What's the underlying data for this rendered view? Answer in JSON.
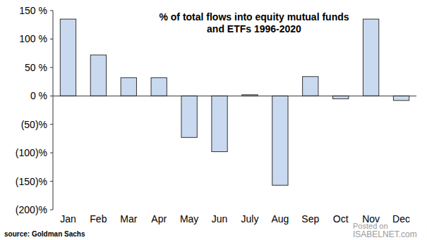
{
  "chart_data": {
    "type": "bar",
    "title": "% of total flows into equity mutual funds and ETFs 1996-2020",
    "source": "source: Goldman Sachs",
    "annotations": [
      "Posted on",
      "ISABELNET.com"
    ],
    "categories": [
      "Jan",
      "Feb",
      "Mar",
      "Apr",
      "May",
      "Jun",
      "July",
      "Aug",
      "Sep",
      "Oct",
      "Nov",
      "Dec"
    ],
    "values": [
      135,
      72,
      32,
      32,
      -73,
      -98,
      2,
      -157,
      34,
      -5,
      135,
      -8
    ],
    "color": "#c9d9ef",
    "ylim": [
      -200,
      150
    ],
    "yticks": [
      {
        "value": 150,
        "label": "150 %"
      },
      {
        "value": 100,
        "label": "100 %"
      },
      {
        "value": 50,
        "label": "50 %"
      },
      {
        "value": 0,
        "label": "0 %"
      },
      {
        "value": -50,
        "label": "(50)%"
      },
      {
        "value": -100,
        "label": "(100)%"
      },
      {
        "value": -150,
        "label": "(150)%"
      },
      {
        "value": -200,
        "label": "(200)%"
      }
    ],
    "grid": false
  }
}
